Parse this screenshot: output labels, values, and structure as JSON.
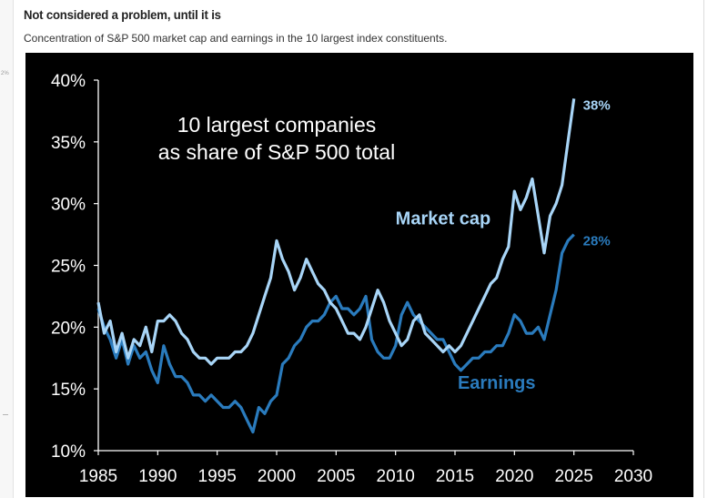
{
  "header": {
    "title": "Not considered a problem, until it is",
    "subtitle": "Concentration of S&P 500 market cap and earnings in the 10 largest index constituents."
  },
  "left_rail": {
    "tick_label": "2%"
  },
  "colors": {
    "background": "#000000",
    "market_cap": "#a8d5f7",
    "earnings": "#2a7bbd",
    "axis_text": "#ffffff"
  },
  "chart_data": {
    "type": "line",
    "title": "10 largest companies\nas share of S&P 500 total",
    "xlabel": "",
    "ylabel": "",
    "xlim": [
      1985,
      2030
    ],
    "ylim": [
      10,
      40
    ],
    "x_ticks": [
      1985,
      1990,
      1995,
      2000,
      2005,
      2010,
      2015,
      2020,
      2025,
      2030
    ],
    "x_tick_labels": [
      "1985",
      "1990",
      "1995",
      "2000",
      "2005",
      "2010",
      "2015",
      "2020",
      "2025",
      "2030"
    ],
    "y_ticks": [
      10,
      15,
      20,
      25,
      30,
      35,
      40
    ],
    "y_tick_labels": [
      "10%",
      "15%",
      "20%",
      "25%",
      "30%",
      "35%",
      "40%"
    ],
    "grid": false,
    "series": [
      {
        "name": "Market cap",
        "end_label": "38%",
        "x": [
          1985,
          1985.5,
          1986,
          1986.5,
          1987,
          1987.5,
          1988,
          1988.5,
          1989,
          1989.5,
          1990,
          1990.5,
          1991,
          1991.5,
          1992,
          1992.5,
          1993,
          1993.5,
          1994,
          1994.5,
          1995,
          1995.5,
          1996,
          1996.5,
          1997,
          1997.5,
          1998,
          1998.5,
          1999,
          1999.5,
          2000,
          2000.5,
          2001,
          2001.5,
          2002,
          2002.5,
          2003,
          2003.5,
          2004,
          2004.5,
          2005,
          2005.5,
          2006,
          2006.5,
          2007,
          2007.5,
          2008,
          2008.5,
          2009,
          2009.5,
          2010,
          2010.5,
          2011,
          2011.5,
          2012,
          2012.5,
          2013,
          2013.5,
          2014,
          2014.5,
          2015,
          2015.5,
          2016,
          2016.5,
          2017,
          2017.5,
          2018,
          2018.5,
          2019,
          2019.5,
          2020,
          2020.5,
          2021,
          2021.5,
          2022,
          2022.5,
          2023,
          2023.5,
          2024,
          2024.5,
          2025
        ],
        "values": [
          22.0,
          19.5,
          20.5,
          18.0,
          19.5,
          17.5,
          19.0,
          18.5,
          20.0,
          18.0,
          20.5,
          20.5,
          21.0,
          20.5,
          19.5,
          19.0,
          18.0,
          17.5,
          17.5,
          17.0,
          17.5,
          17.5,
          17.5,
          18.0,
          18.0,
          18.5,
          19.5,
          21.0,
          22.5,
          24.0,
          27.0,
          25.5,
          24.5,
          23.0,
          24.0,
          25.5,
          24.5,
          23.5,
          23.0,
          22.0,
          21.5,
          20.5,
          19.5,
          19.5,
          19.0,
          20.0,
          21.5,
          23.0,
          22.0,
          20.5,
          19.5,
          18.5,
          19.0,
          20.5,
          21.0,
          19.5,
          19.0,
          18.5,
          18.0,
          18.5,
          18.0,
          18.5,
          19.5,
          20.5,
          21.5,
          22.5,
          23.5,
          24.0,
          25.5,
          26.5,
          31.0,
          29.5,
          30.5,
          32.0,
          29.0,
          26.0,
          29.0,
          30.0,
          31.5,
          35.0,
          38.5
        ]
      },
      {
        "name": "Earnings",
        "end_label": "28%",
        "x": [
          1985,
          1985.5,
          1986,
          1986.5,
          1987,
          1987.5,
          1988,
          1988.5,
          1989,
          1989.5,
          1990,
          1990.5,
          1991,
          1991.5,
          1992,
          1992.5,
          1993,
          1993.5,
          1994,
          1994.5,
          1995,
          1995.5,
          1996,
          1996.5,
          1997,
          1997.5,
          1998,
          1998.5,
          1999,
          1999.5,
          2000,
          2000.5,
          2001,
          2001.5,
          2002,
          2002.5,
          2003,
          2003.5,
          2004,
          2004.5,
          2005,
          2005.5,
          2006,
          2006.5,
          2007,
          2007.5,
          2008,
          2008.5,
          2009,
          2009.5,
          2010,
          2010.5,
          2011,
          2011.5,
          2012,
          2012.5,
          2013,
          2013.5,
          2014,
          2014.5,
          2015,
          2015.5,
          2016,
          2016.5,
          2017,
          2017.5,
          2018,
          2018.5,
          2019,
          2019.5,
          2020,
          2020.5,
          2021,
          2021.5,
          2022,
          2022.5,
          2023,
          2023.5,
          2024,
          2024.5,
          2025
        ],
        "values": [
          21.5,
          20.0,
          19.0,
          17.5,
          19.0,
          17.0,
          18.5,
          17.5,
          18.0,
          16.5,
          15.5,
          18.5,
          17.0,
          16.0,
          16.0,
          15.5,
          14.5,
          14.5,
          14.0,
          14.5,
          14.0,
          13.5,
          13.5,
          14.0,
          13.5,
          12.5,
          11.5,
          13.5,
          13.0,
          14.0,
          14.5,
          17.0,
          17.5,
          18.5,
          19.0,
          20.0,
          20.5,
          20.5,
          21.0,
          22.0,
          22.5,
          21.5,
          21.5,
          21.0,
          21.5,
          22.5,
          19.0,
          18.0,
          17.5,
          17.5,
          18.5,
          21.0,
          22.0,
          21.0,
          20.5,
          20.0,
          19.5,
          19.0,
          19.0,
          18.0,
          17.0,
          16.5,
          17.0,
          17.5,
          17.5,
          18.0,
          18.0,
          18.5,
          18.5,
          19.5,
          21.0,
          20.5,
          19.5,
          19.5,
          20.0,
          19.0,
          21.0,
          23.0,
          26.0,
          27.0,
          27.5
        ]
      }
    ],
    "annotations": [
      {
        "text": "Market cap",
        "x": 2014,
        "y": 28.3
      },
      {
        "text": "Earnings",
        "x": 2018.5,
        "y": 15.0
      }
    ]
  }
}
